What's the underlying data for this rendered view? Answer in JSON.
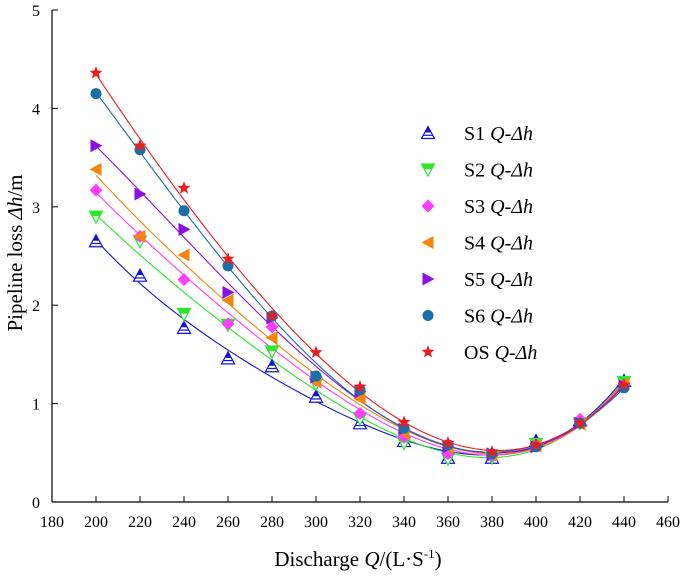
{
  "chart_data": {
    "type": "scatter",
    "title": "",
    "xlabel": {
      "pre": "Discharge ",
      "var": "Q",
      "post": "/(L·S",
      "sup": "-1",
      "end": ")"
    },
    "ylabel": {
      "pre": "Pipeline loss ",
      "var": "Δh",
      "post": "/m"
    },
    "xlim": [
      180,
      460
    ],
    "ylim": [
      0,
      5
    ],
    "xticks": [
      180,
      200,
      220,
      240,
      260,
      280,
      300,
      320,
      340,
      360,
      380,
      400,
      420,
      440,
      460
    ],
    "yticks": [
      0,
      1,
      2,
      3,
      4,
      5
    ],
    "legend_position": "upper-right",
    "x": [
      200,
      220,
      240,
      260,
      280,
      300,
      320,
      340,
      360,
      380,
      400,
      420,
      440
    ],
    "series": [
      {
        "name": "S1",
        "label_var": "Q-Δh",
        "marker": "triangle-up-half",
        "color": "#1414d2",
        "values": [
          2.65,
          2.3,
          1.77,
          1.46,
          1.38,
          1.07,
          0.8,
          0.62,
          0.45,
          0.45,
          0.62,
          0.83,
          1.23
        ]
      },
      {
        "name": "S2",
        "label_var": "Q-Δh",
        "marker": "triangle-down-half",
        "color": "#2ee62e",
        "values": [
          2.9,
          2.65,
          1.91,
          1.8,
          1.53,
          1.2,
          0.85,
          0.6,
          0.44,
          0.45,
          0.59,
          0.8,
          1.22
        ]
      },
      {
        "name": "S3",
        "label_var": "Q-Δh",
        "marker": "diamond",
        "color": "#ff3dff",
        "values": [
          3.17,
          2.7,
          2.26,
          1.81,
          1.78,
          1.24,
          0.9,
          0.66,
          0.49,
          0.47,
          0.58,
          0.84,
          1.19
        ]
      },
      {
        "name": "S4",
        "label_var": "Q-Δh",
        "marker": "triangle-left",
        "color": "#f5840f",
        "values": [
          3.38,
          2.7,
          2.51,
          2.05,
          1.67,
          1.22,
          1.05,
          0.7,
          0.55,
          0.48,
          0.57,
          0.79,
          1.2
        ]
      },
      {
        "name": "S5",
        "label_var": "Q-Δh",
        "marker": "triangle-right",
        "color": "#8b10e6",
        "values": [
          3.62,
          3.13,
          2.77,
          2.13,
          1.87,
          1.27,
          1.12,
          0.74,
          0.56,
          0.49,
          0.56,
          0.8,
          1.18
        ]
      },
      {
        "name": "S6",
        "label_var": "Q-Δh",
        "marker": "circle",
        "color": "#1a6fa8",
        "values": [
          4.15,
          3.58,
          2.96,
          2.4,
          1.89,
          1.28,
          1.14,
          0.75,
          0.58,
          0.49,
          0.56,
          0.8,
          1.16
        ]
      },
      {
        "name": "OS",
        "label_var": "Q-Δh",
        "marker": "star",
        "color": "#ee1c1c",
        "values": [
          4.36,
          3.62,
          3.19,
          2.47,
          1.89,
          1.52,
          1.17,
          0.81,
          0.6,
          0.51,
          0.58,
          0.8,
          1.19
        ]
      }
    ]
  }
}
